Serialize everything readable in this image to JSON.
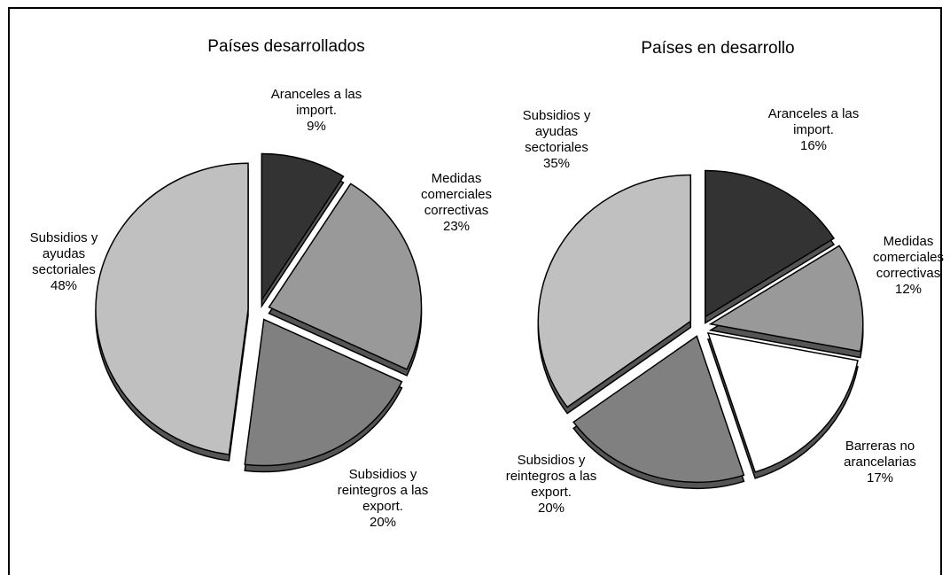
{
  "chart_data": [
    {
      "type": "pie",
      "title": "Países desarrollados",
      "categories": [
        "Aranceles a las import.",
        "Medidas comerciales correctivas",
        "Subsidios y reintegros a las export.",
        "Subsidios y ayudas sectoriales"
      ],
      "values": [
        9,
        23,
        20,
        48
      ],
      "value_labels": [
        "9%",
        "23%",
        "20%",
        "48%"
      ],
      "colors": [
        "#333333",
        "#999999",
        "#808080",
        "#c0c0c0"
      ]
    },
    {
      "type": "pie",
      "title": "Países en desarrollo",
      "categories": [
        "Aranceles a las import.",
        "Medidas comerciales correctivas",
        "Barreras no arancelarias",
        "Subsidios y reintegros a las export.",
        "Subsidios y ayudas sectoriales"
      ],
      "values": [
        16,
        12,
        17,
        20,
        35
      ],
      "value_labels": [
        "16%",
        "12%",
        "17%",
        "20%",
        "35%"
      ],
      "colors": [
        "#333333",
        "#999999",
        "#ffffff",
        "#808080",
        "#c0c0c0"
      ]
    }
  ]
}
